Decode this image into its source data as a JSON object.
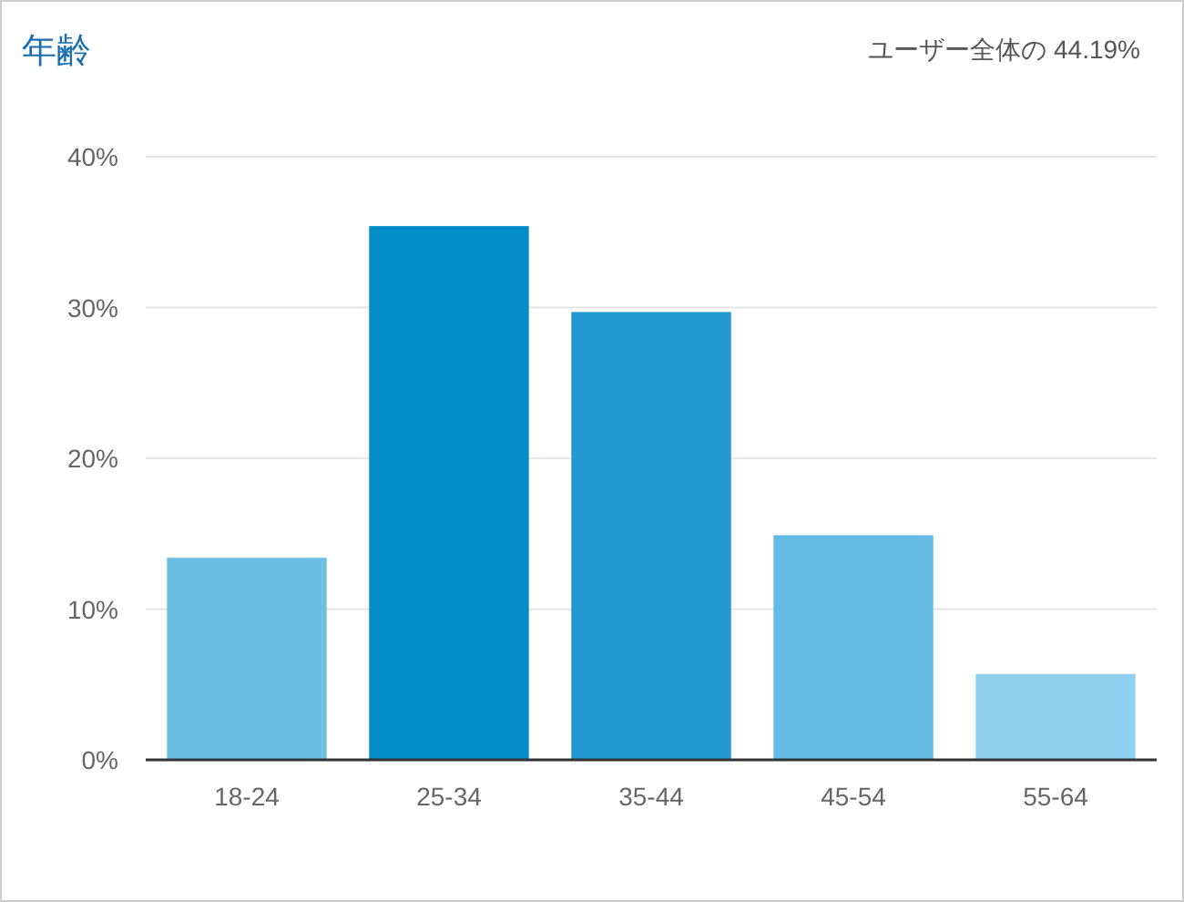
{
  "chart_data": {
    "type": "bar",
    "title": "年齢",
    "annotations": [
      "ユーザー全体の 44.19%"
    ],
    "categories": [
      "18-24",
      "25-34",
      "35-44",
      "45-54",
      "55-64"
    ],
    "values": [
      13.4,
      35.4,
      29.7,
      14.9,
      5.7
    ],
    "colors": [
      "#6bbfe3",
      "#058dc7",
      "#2399d1",
      "#64bbe3",
      "#90cfee"
    ],
    "ylim": [
      0,
      40
    ],
    "yticks": [
      {
        "value": 0,
        "label": "0%"
      },
      {
        "value": 10,
        "label": "10%"
      },
      {
        "value": 20,
        "label": "20%"
      },
      {
        "value": 30,
        "label": "30%"
      },
      {
        "value": 40,
        "label": "40%"
      }
    ],
    "grid": "y"
  }
}
